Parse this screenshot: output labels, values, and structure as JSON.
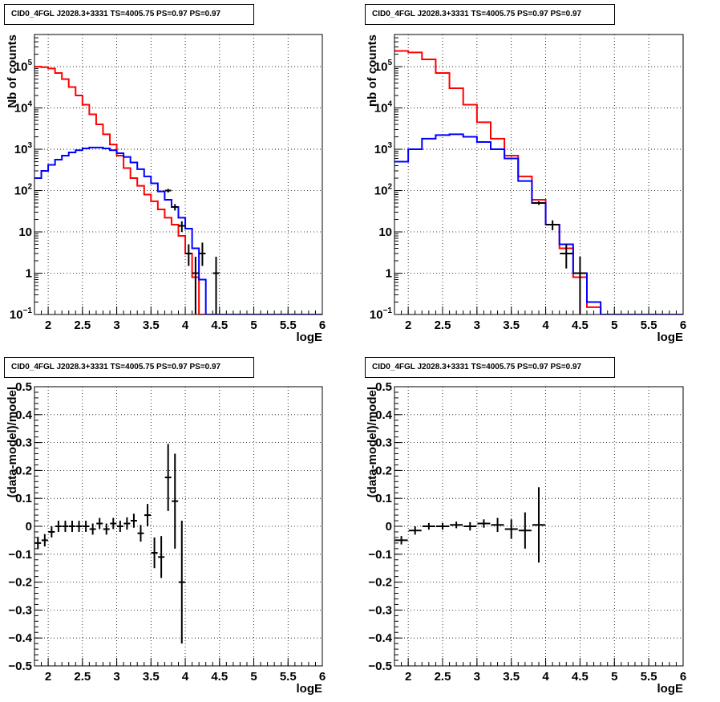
{
  "chart_data": [
    {
      "type": "histogram",
      "title": "CID0_4FGL J2028.3+3331 TS=4005.75 PS=0.97 PS=0.97",
      "xlabel": "logE",
      "ylabel": "Nb of counts",
      "xlim": [
        1.8,
        6
      ],
      "ylim": [
        0.1,
        600000
      ],
      "yscale": "log",
      "grid": true,
      "x_ticks": [
        "2",
        "2.5",
        "3",
        "3.5",
        "4",
        "4.5",
        "5",
        "5.5",
        "6"
      ],
      "y_ticks": [
        "10^{-1}",
        "1",
        "10",
        "10^{2}",
        "10^{3}",
        "10^{4}",
        "10^{5}"
      ],
      "bin_edges": [
        1.8,
        1.9,
        2.0,
        2.1,
        2.2,
        2.3,
        2.4,
        2.5,
        2.6,
        2.7,
        2.8,
        2.9,
        3.0,
        3.1,
        3.2,
        3.3,
        3.4,
        3.5,
        3.6,
        3.7,
        3.8,
        3.9,
        4.0,
        4.1,
        4.2,
        4.3,
        4.4,
        4.5,
        4.6,
        4.7,
        4.8,
        4.9,
        5.0,
        5.1,
        5.2,
        5.3,
        5.4,
        5.5,
        5.6,
        5.7,
        5.8,
        5.9,
        6.0
      ],
      "series": [
        {
          "color": "#ff0000",
          "values": [
            100000,
            97000,
            90000,
            70000,
            50000,
            32000,
            20000,
            12000,
            7000,
            4000,
            2300,
            1300,
            700,
            350,
            200,
            130,
            80,
            55,
            35,
            22,
            15,
            8,
            3,
            0.8,
            0.1,
            0.1,
            0.1,
            0.1,
            0.1,
            0.1,
            0.1,
            0.1,
            0.1,
            0.1,
            0.1,
            0.1,
            0.1,
            0.1,
            0.1,
            0.1,
            0.1,
            0.1
          ]
        },
        {
          "color": "#0000ff",
          "values": [
            200,
            300,
            420,
            560,
            700,
            840,
            950,
            1050,
            1100,
            1100,
            1050,
            950,
            800,
            650,
            480,
            330,
            220,
            150,
            95,
            60,
            40,
            22,
            12,
            4,
            0.7,
            0.1,
            0.1,
            0.1,
            0.1,
            0.1,
            0.1,
            0.1,
            0.1,
            0.1,
            0.1,
            0.1,
            0.1,
            0.1,
            0.1,
            0.1,
            0.1,
            0.1
          ]
        }
      ],
      "points": [
        {
          "x": 3.75,
          "y": 100,
          "ylo": 90,
          "yhi": 110
        },
        {
          "x": 3.85,
          "y": 40,
          "ylo": 33,
          "yhi": 47
        },
        {
          "x": 3.95,
          "y": 14,
          "ylo": 10,
          "yhi": 18
        },
        {
          "x": 4.05,
          "y": 3,
          "ylo": 1.5,
          "yhi": 5
        },
        {
          "x": 4.15,
          "y": 1,
          "ylo": 0.1,
          "yhi": 2.5
        },
        {
          "x": 4.25,
          "y": 3,
          "ylo": 1.5,
          "yhi": 5.5
        },
        {
          "x": 4.45,
          "y": 1,
          "ylo": 0.1,
          "yhi": 2.5
        }
      ]
    },
    {
      "type": "histogram",
      "title": "CID0_4FGL J2028.3+3331 TS=4005.75 PS=0.97 PS=0.97",
      "xlabel": "logE",
      "ylabel": "nb of counts",
      "xlim": [
        1.8,
        6
      ],
      "ylim": [
        0.1,
        600000
      ],
      "yscale": "log",
      "grid": true,
      "x_ticks": [
        "2",
        "2.5",
        "3",
        "3.5",
        "4",
        "4.5",
        "5",
        "5.5",
        "6"
      ],
      "y_ticks": [
        "10^{-1}",
        "1",
        "10",
        "10^{2}",
        "10^{3}",
        "10^{4}",
        "10^{5}"
      ],
      "bin_edges": [
        1.8,
        2.0,
        2.2,
        2.4,
        2.6,
        2.8,
        3.0,
        3.2,
        3.4,
        3.6,
        3.8,
        4.0,
        4.2,
        4.4,
        4.6,
        4.8,
        5.0,
        5.2,
        5.4,
        5.6,
        5.8,
        6.0
      ],
      "series": [
        {
          "color": "#ff0000",
          "values": [
            240000,
            220000,
            150000,
            70000,
            30000,
            12000,
            4500,
            1800,
            700,
            220,
            60,
            15,
            4,
            0.8,
            0.15,
            0.1,
            0.1,
            0.1,
            0.1,
            0.1,
            0.1
          ]
        },
        {
          "color": "#0000ff",
          "values": [
            500,
            1000,
            1800,
            2200,
            2300,
            2000,
            1500,
            1000,
            600,
            170,
            50,
            15,
            5,
            1,
            0.2,
            0.1,
            0.1,
            0.1,
            0.1,
            0.1,
            0.1
          ]
        }
      ],
      "points": [
        {
          "x": 3.9,
          "y": 50,
          "ylo": 45,
          "yhi": 55
        },
        {
          "x": 4.1,
          "y": 15,
          "ylo": 11,
          "yhi": 19
        },
        {
          "x": 4.3,
          "y": 3,
          "ylo": 1.3,
          "yhi": 5
        },
        {
          "x": 4.5,
          "y": 1,
          "ylo": 0.1,
          "yhi": 2.5
        }
      ]
    },
    {
      "type": "scatter",
      "title": "CID0_4FGL J2028.3+3331 TS=4005.75 PS=0.97 PS=0.97",
      "xlabel": "logE",
      "ylabel": "(data-model)/model",
      "xlim": [
        1.8,
        6
      ],
      "ylim": [
        -0.5,
        0.5
      ],
      "grid": true,
      "x_ticks": [
        "2",
        "2.5",
        "3",
        "3.5",
        "4",
        "4.5",
        "5",
        "5.5",
        "6"
      ],
      "y_ticks": [
        "-0.5",
        "-0.4",
        "-0.3",
        "-0.2",
        "-0.1",
        "0",
        "0.1",
        "0.2",
        "0.3",
        "0.4",
        "0.5"
      ],
      "points": [
        {
          "x": 1.85,
          "y": -0.06,
          "err": 0.022
        },
        {
          "x": 1.95,
          "y": -0.05,
          "err": 0.022
        },
        {
          "x": 2.05,
          "y": -0.02,
          "err": 0.02
        },
        {
          "x": 2.15,
          "y": 0.0,
          "err": 0.02
        },
        {
          "x": 2.25,
          "y": 0.0,
          "err": 0.02
        },
        {
          "x": 2.35,
          "y": 0.0,
          "err": 0.02
        },
        {
          "x": 2.45,
          "y": 0.0,
          "err": 0.02
        },
        {
          "x": 2.55,
          "y": 0.0,
          "err": 0.02
        },
        {
          "x": 2.65,
          "y": -0.01,
          "err": 0.02
        },
        {
          "x": 2.75,
          "y": 0.01,
          "err": 0.02
        },
        {
          "x": 2.85,
          "y": -0.01,
          "err": 0.02
        },
        {
          "x": 2.95,
          "y": 0.01,
          "err": 0.02
        },
        {
          "x": 3.05,
          "y": 0.0,
          "err": 0.02
        },
        {
          "x": 3.15,
          "y": 0.01,
          "err": 0.022
        },
        {
          "x": 3.25,
          "y": 0.02,
          "err": 0.025
        },
        {
          "x": 3.35,
          "y": -0.025,
          "err": 0.03
        },
        {
          "x": 3.45,
          "y": 0.04,
          "err": 0.04
        },
        {
          "x": 3.55,
          "y": -0.095,
          "err": 0.055
        },
        {
          "x": 3.65,
          "y": -0.11,
          "err": 0.075
        },
        {
          "x": 3.75,
          "y": 0.175,
          "err": 0.12
        },
        {
          "x": 3.85,
          "y": 0.09,
          "err": 0.17
        },
        {
          "x": 3.95,
          "y": -0.2,
          "err": 0.22
        }
      ]
    },
    {
      "type": "scatter",
      "title": "CID0_4FGL J2028.3+3331 TS=4005.75 PS=0.97 PS=0.97",
      "xlabel": "logE",
      "ylabel": "(data-model)/model",
      "xlim": [
        1.8,
        6
      ],
      "ylim": [
        -0.5,
        0.5
      ],
      "grid": true,
      "x_ticks": [
        "2",
        "2.5",
        "3",
        "3.5",
        "4",
        "4.5",
        "5",
        "5.5",
        "6"
      ],
      "y_ticks": [
        "-0.5",
        "-0.4",
        "-0.3",
        "-0.2",
        "-0.1",
        "0",
        "0.1",
        "0.2",
        "0.3",
        "0.4",
        "0.5"
      ],
      "points": [
        {
          "x": 1.9,
          "y": -0.05,
          "err": 0.015
        },
        {
          "x": 2.1,
          "y": -0.015,
          "err": 0.015
        },
        {
          "x": 2.3,
          "y": 0.0,
          "err": 0.012
        },
        {
          "x": 2.5,
          "y": 0.0,
          "err": 0.012
        },
        {
          "x": 2.7,
          "y": 0.005,
          "err": 0.012
        },
        {
          "x": 2.9,
          "y": 0.0,
          "err": 0.015
        },
        {
          "x": 3.1,
          "y": 0.01,
          "err": 0.015
        },
        {
          "x": 3.3,
          "y": 0.005,
          "err": 0.025
        },
        {
          "x": 3.5,
          "y": -0.01,
          "err": 0.035
        },
        {
          "x": 3.7,
          "y": -0.015,
          "err": 0.065
        },
        {
          "x": 3.9,
          "y": 0.005,
          "err": 0.135
        }
      ]
    }
  ]
}
